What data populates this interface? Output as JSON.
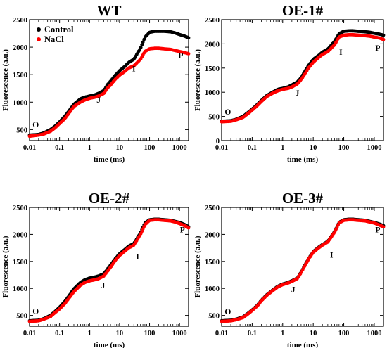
{
  "chart_data": [
    {
      "type": "scatter",
      "title": "WT",
      "xlabel": "time (ms)",
      "ylabel": "Fluorescence (a.u.)",
      "xscale": "log",
      "xlim": [
        0.01,
        2000
      ],
      "ylim": [
        300,
        2500
      ],
      "xticks": [
        0.01,
        0.1,
        1,
        10,
        100,
        1000
      ],
      "xtick_labels": [
        "0.01",
        "0.1",
        "1",
        "10",
        "100",
        "1000"
      ],
      "yticks": [
        500,
        1000,
        1500,
        2000,
        2500
      ],
      "ytick_labels": [
        "500",
        "1000",
        "1500",
        "2000",
        "2500"
      ],
      "legend": {
        "position": "top-left",
        "entries": [
          "Control",
          "NaCl"
        ]
      },
      "annotations": [
        {
          "text": "O",
          "x": 0.016,
          "y": 540
        },
        {
          "text": "J",
          "x": 2.0,
          "y": 990
        },
        {
          "text": "I",
          "x": 30,
          "y": 1560
        },
        {
          "text": "P",
          "x": 1100,
          "y": 1800
        }
      ],
      "series": [
        {
          "name": "Control",
          "color": "#000000",
          "x": [
            0.01,
            0.02,
            0.03,
            0.05,
            0.07,
            0.1,
            0.15,
            0.2,
            0.3,
            0.5,
            0.7,
            1,
            1.5,
            2,
            3,
            4,
            5,
            7,
            10,
            15,
            20,
            30,
            50,
            70,
            100,
            150,
            200,
            300,
            500,
            700,
            1000,
            1500,
            2000
          ],
          "y": [
            400,
            410,
            440,
            500,
            560,
            640,
            740,
            830,
            960,
            1060,
            1090,
            1110,
            1130,
            1160,
            1210,
            1320,
            1380,
            1480,
            1570,
            1650,
            1720,
            1780,
            1980,
            2180,
            2270,
            2290,
            2290,
            2290,
            2280,
            2260,
            2230,
            2200,
            2170
          ]
        },
        {
          "name": "NaCl",
          "color": "#ff0000",
          "x": [
            0.01,
            0.02,
            0.03,
            0.05,
            0.07,
            0.1,
            0.15,
            0.2,
            0.3,
            0.5,
            0.7,
            1,
            1.5,
            2,
            3,
            4,
            5,
            7,
            10,
            15,
            20,
            30,
            50,
            70,
            100,
            150,
            200,
            300,
            500,
            700,
            1000,
            1500,
            2000
          ],
          "y": [
            380,
            400,
            420,
            470,
            530,
            610,
            700,
            790,
            920,
            1000,
            1040,
            1070,
            1090,
            1110,
            1160,
            1260,
            1310,
            1410,
            1490,
            1560,
            1620,
            1660,
            1780,
            1920,
            1970,
            1980,
            1980,
            1970,
            1960,
            1940,
            1920,
            1900,
            1880
          ]
        }
      ]
    },
    {
      "type": "scatter",
      "title": "OE-1#",
      "xlabel": "time (ms)",
      "ylabel": "Fluorescence (a.u.)",
      "xscale": "log",
      "xlim": [
        0.01,
        2000
      ],
      "ylim": [
        0,
        2500
      ],
      "xticks": [
        0.01,
        0.1,
        1,
        10,
        100,
        1000
      ],
      "xtick_labels": [
        "0.01",
        "0.1",
        "1",
        "10",
        "100",
        "1000"
      ],
      "yticks": [
        0,
        500,
        1000,
        1500,
        2000,
        2500
      ],
      "ytick_labels": [
        "0",
        "500",
        "1000",
        "1500",
        "2000",
        "2500"
      ],
      "annotations": [
        {
          "text": "O",
          "x": 0.016,
          "y": 540
        },
        {
          "text": "J",
          "x": 3.0,
          "y": 930
        },
        {
          "text": "I",
          "x": 80,
          "y": 1770
        },
        {
          "text": "P",
          "x": 1300,
          "y": 1860
        }
      ],
      "series": [
        {
          "name": "Control",
          "color": "#000000",
          "x": [
            0.01,
            0.02,
            0.03,
            0.05,
            0.07,
            0.1,
            0.15,
            0.2,
            0.3,
            0.5,
            0.7,
            1,
            1.5,
            2,
            3,
            4,
            5,
            7,
            10,
            15,
            20,
            30,
            50,
            70,
            100,
            150,
            200,
            300,
            500,
            700,
            1000,
            1500,
            2000
          ],
          "y": [
            400,
            410,
            440,
            500,
            570,
            650,
            750,
            830,
            930,
            1010,
            1060,
            1080,
            1110,
            1150,
            1210,
            1300,
            1400,
            1550,
            1680,
            1760,
            1830,
            1890,
            2050,
            2210,
            2260,
            2270,
            2270,
            2260,
            2250,
            2240,
            2220,
            2200,
            2180
          ]
        },
        {
          "name": "NaCl",
          "color": "#ff0000",
          "x": [
            0.01,
            0.02,
            0.03,
            0.05,
            0.07,
            0.1,
            0.15,
            0.2,
            0.3,
            0.5,
            0.7,
            1,
            1.5,
            2,
            3,
            4,
            5,
            7,
            10,
            15,
            20,
            30,
            50,
            70,
            100,
            150,
            200,
            300,
            500,
            700,
            1000,
            1500,
            2000
          ],
          "y": [
            390,
            400,
            430,
            480,
            550,
            630,
            730,
            810,
            910,
            990,
            1030,
            1060,
            1080,
            1110,
            1170,
            1260,
            1350,
            1500,
            1620,
            1720,
            1780,
            1840,
            1980,
            2140,
            2180,
            2190,
            2190,
            2180,
            2170,
            2160,
            2140,
            2120,
            2090
          ]
        }
      ]
    },
    {
      "type": "scatter",
      "title": "OE-2#",
      "xlabel": "time (ms)",
      "ylabel": "Fluorescence (a.u.)",
      "xscale": "log",
      "xlim": [
        0.01,
        2000
      ],
      "ylim": [
        300,
        2500
      ],
      "xticks": [
        0.01,
        0.1,
        1,
        10,
        100,
        1000
      ],
      "xtick_labels": [
        "0.01",
        "0.1",
        "1",
        "10",
        "100",
        "1000"
      ],
      "yticks": [
        500,
        1000,
        1500,
        2000,
        2500
      ],
      "ytick_labels": [
        "500",
        "1000",
        "1500",
        "2000",
        "2500"
      ],
      "annotations": [
        {
          "text": "O",
          "x": 0.016,
          "y": 530
        },
        {
          "text": "J",
          "x": 2.8,
          "y": 1000
        },
        {
          "text": "I",
          "x": 40,
          "y": 1540
        },
        {
          "text": "P",
          "x": 1250,
          "y": 2040
        }
      ],
      "series": [
        {
          "name": "Control",
          "color": "#000000",
          "x": [
            0.01,
            0.02,
            0.03,
            0.05,
            0.07,
            0.1,
            0.15,
            0.2,
            0.3,
            0.5,
            0.7,
            1,
            1.5,
            2,
            3,
            4,
            5,
            7,
            10,
            15,
            20,
            30,
            50,
            70,
            100,
            150,
            200,
            300,
            500,
            700,
            1000,
            1500,
            2000
          ],
          "y": [
            400,
            410,
            440,
            500,
            570,
            650,
            760,
            850,
            990,
            1110,
            1160,
            1190,
            1210,
            1230,
            1270,
            1360,
            1430,
            1540,
            1640,
            1720,
            1780,
            1830,
            2030,
            2210,
            2270,
            2280,
            2280,
            2270,
            2260,
            2240,
            2220,
            2180,
            2140
          ]
        },
        {
          "name": "NaCl",
          "color": "#ff0000",
          "x": [
            0.01,
            0.02,
            0.03,
            0.05,
            0.07,
            0.1,
            0.15,
            0.2,
            0.3,
            0.5,
            0.7,
            1,
            1.5,
            2,
            3,
            4,
            5,
            7,
            10,
            15,
            20,
            30,
            50,
            70,
            100,
            150,
            200,
            300,
            500,
            700,
            1000,
            1500,
            2000
          ],
          "y": [
            390,
            400,
            430,
            480,
            550,
            620,
            720,
            810,
            940,
            1060,
            1110,
            1140,
            1160,
            1180,
            1230,
            1320,
            1390,
            1510,
            1610,
            1690,
            1750,
            1800,
            2000,
            2180,
            2260,
            2270,
            2270,
            2260,
            2250,
            2230,
            2200,
            2160,
            2120
          ]
        }
      ]
    },
    {
      "type": "scatter",
      "title": "OE-3#",
      "xlabel": "time (ms)",
      "ylabel": "Fluorescence (a.u.)",
      "xscale": "log",
      "xlim": [
        0.01,
        2000
      ],
      "ylim": [
        300,
        2500
      ],
      "xticks": [
        0.01,
        0.1,
        1,
        10,
        100,
        1000
      ],
      "xtick_labels": [
        "0.01",
        "0.1",
        "1",
        "10",
        "100",
        "1000"
      ],
      "yticks": [
        500,
        1000,
        1500,
        2000,
        2500
      ],
      "ytick_labels": [
        "500",
        "1000",
        "1500",
        "2000",
        "2500"
      ],
      "annotations": [
        {
          "text": "O",
          "x": 0.016,
          "y": 520
        },
        {
          "text": "J",
          "x": 2.2,
          "y": 930
        },
        {
          "text": "I",
          "x": 40,
          "y": 1570
        },
        {
          "text": "P",
          "x": 1300,
          "y": 2040
        }
      ],
      "series": [
        {
          "name": "Control",
          "color": "#000000",
          "x": [
            0.01,
            0.02,
            0.03,
            0.05,
            0.07,
            0.1,
            0.15,
            0.2,
            0.3,
            0.5,
            0.7,
            1,
            1.5,
            2,
            3,
            4,
            5,
            7,
            10,
            15,
            20,
            30,
            50,
            70,
            100,
            150,
            200,
            300,
            500,
            700,
            1000,
            1500,
            2000
          ],
          "y": [
            400,
            410,
            430,
            470,
            530,
            600,
            690,
            780,
            880,
            980,
            1040,
            1080,
            1110,
            1140,
            1190,
            1300,
            1400,
            1550,
            1680,
            1760,
            1810,
            1870,
            2050,
            2220,
            2270,
            2280,
            2280,
            2270,
            2260,
            2240,
            2220,
            2190,
            2160
          ]
        },
        {
          "name": "NaCl",
          "color": "#ff0000",
          "x": [
            0.01,
            0.02,
            0.03,
            0.05,
            0.07,
            0.1,
            0.15,
            0.2,
            0.3,
            0.5,
            0.7,
            1,
            1.5,
            2,
            3,
            4,
            5,
            7,
            10,
            15,
            20,
            30,
            50,
            70,
            100,
            150,
            200,
            300,
            500,
            700,
            1000,
            1500,
            2000
          ],
          "y": [
            390,
            400,
            420,
            460,
            520,
            590,
            680,
            770,
            870,
            970,
            1030,
            1070,
            1100,
            1130,
            1180,
            1290,
            1390,
            1540,
            1670,
            1750,
            1800,
            1860,
            2040,
            2210,
            2260,
            2270,
            2270,
            2260,
            2250,
            2230,
            2210,
            2170,
            2140
          ]
        }
      ]
    }
  ]
}
